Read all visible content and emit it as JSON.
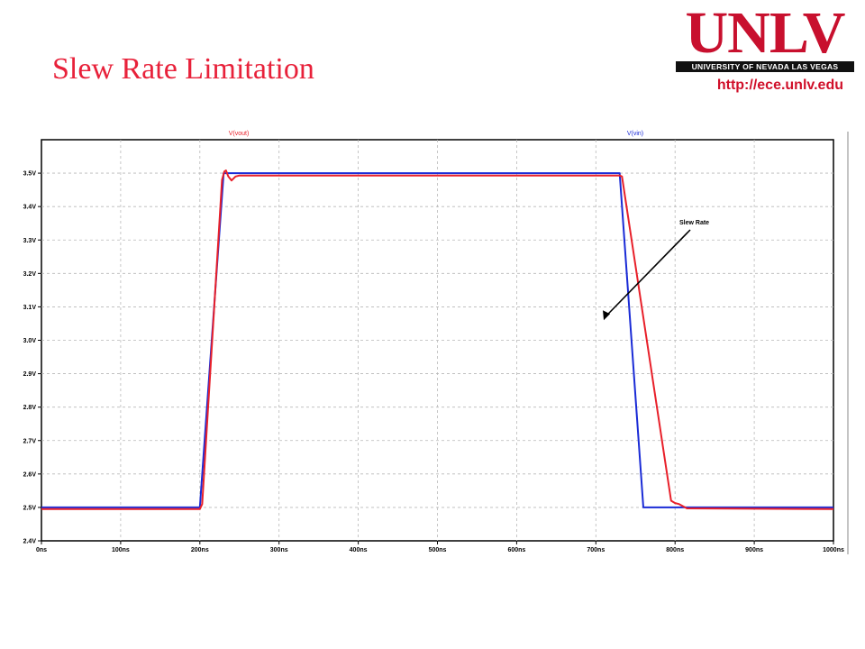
{
  "slide": {
    "title": "Slew Rate Limitation",
    "url": "http://ece.unlv.edu"
  },
  "logo": {
    "word": "UNLV",
    "tagline": "UNIVERSITY OF NEVADA LAS VEGAS"
  },
  "colors": {
    "title": "#e8213a",
    "vout": "#e8202a",
    "vin": "#1a2bd6",
    "grid": "#b8b8b8"
  },
  "chart_data": {
    "type": "line",
    "title": "",
    "xlabel": "",
    "ylabel": "",
    "xlim": [
      0,
      1000
    ],
    "ylim": [
      2.4,
      3.6
    ],
    "grid": true,
    "x_ticks": [
      "0ns",
      "100ns",
      "200ns",
      "300ns",
      "400ns",
      "500ns",
      "600ns",
      "700ns",
      "800ns",
      "900ns",
      "1000ns"
    ],
    "y_ticks": [
      "2.4V",
      "2.5V",
      "2.6V",
      "2.7V",
      "2.8V",
      "2.9V",
      "3.0V",
      "3.1V",
      "3.2V",
      "3.3V",
      "3.4V",
      "3.5V"
    ],
    "series": [
      {
        "name": "V(vout)",
        "color": "#e8202a",
        "x": [
          0,
          200,
          203,
          228,
          231,
          233,
          236,
          240,
          245,
          250,
          258,
          730,
          733,
          795,
          800,
          805,
          815,
          1000
        ],
        "y": [
          2.495,
          2.495,
          2.51,
          3.48,
          3.505,
          3.508,
          3.49,
          3.478,
          3.49,
          3.493,
          3.493,
          3.493,
          3.49,
          2.52,
          2.513,
          2.51,
          2.497,
          2.495
        ]
      },
      {
        "name": "V(vin)",
        "color": "#1a2bd6",
        "x": [
          0,
          200,
          230,
          730,
          760,
          1000
        ],
        "y": [
          2.5,
          2.5,
          3.5,
          3.5,
          2.5,
          2.5
        ]
      }
    ],
    "annotations": [
      {
        "text": "Slew Rate",
        "x": 760,
        "y": 3.2
      }
    ]
  }
}
